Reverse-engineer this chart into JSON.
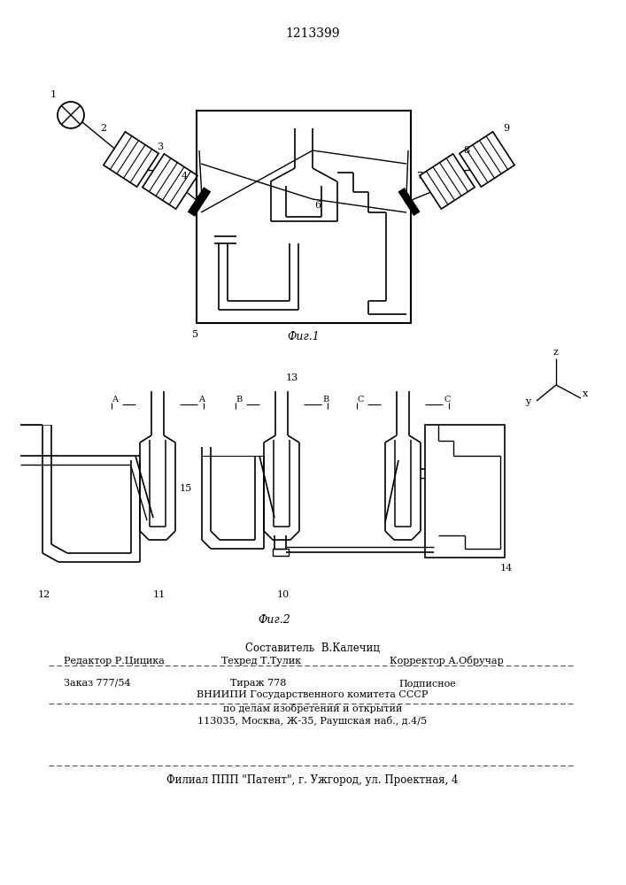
{
  "title_number": "1213399",
  "fig1_label": "Фиг.1",
  "fig2_label": "Фиг.2",
  "footer_line1": "Составитель  В.Калечиц",
  "footer_line2_left": "Редактор Р.Цицика",
  "footer_line2_mid": "Техред Т.Тулик",
  "footer_line2_right": "Корректор А.Обручар",
  "footer_line3a": "Заказ 777/54",
  "footer_line3b": "Тираж 778",
  "footer_line3c": "Подписное",
  "footer_line4": "ВНИИПИ Государственного комитета СССР",
  "footer_line5": "по делам изобретений и открытий",
  "footer_line6": "113035, Москва, Ж-35, Раушская наб., д.4/5",
  "footer_line7": "Филиал ППП \"Патент\", г. Ужгород, ул. Проектная, 4",
  "bg_color": "#ffffff",
  "line_color": "#000000"
}
